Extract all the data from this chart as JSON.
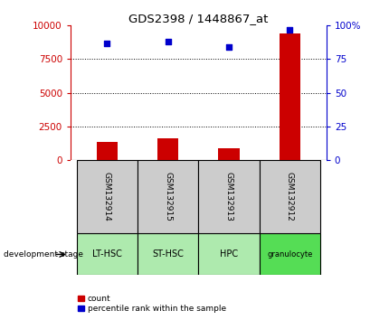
{
  "title": "GDS2398 / 1448867_at",
  "samples": [
    "GSM132914",
    "GSM132915",
    "GSM132913",
    "GSM132912"
  ],
  "counts": [
    1350,
    1600,
    900,
    9400
  ],
  "percentiles": [
    87,
    88,
    84,
    97
  ],
  "categories": [
    "LT-HSC",
    "ST-HSC",
    "HPC",
    "granulocyte"
  ],
  "cat_colors": [
    "#aeeaae",
    "#aeeaae",
    "#aeeaae",
    "#55dd55"
  ],
  "left_ylim": [
    0,
    10000
  ],
  "right_ylim": [
    0,
    100
  ],
  "left_yticks": [
    0,
    2500,
    5000,
    7500,
    10000
  ],
  "right_yticks": [
    0,
    25,
    50,
    75,
    100
  ],
  "left_yticklabels": [
    "0",
    "2500",
    "5000",
    "7500",
    "10000"
  ],
  "right_yticklabels": [
    "0",
    "25",
    "50",
    "75",
    "100%"
  ],
  "grid_values": [
    2500,
    5000,
    7500
  ],
  "bar_color": "#cc0000",
  "dot_color": "#0000cc",
  "bar_width": 0.35,
  "sample_bg_color": "#cccccc",
  "left_axis_color": "#cc0000",
  "right_axis_color": "#0000cc",
  "legend_count_label": "count",
  "legend_pct_label": "percentile rank within the sample",
  "dev_stage_label": "development stage"
}
